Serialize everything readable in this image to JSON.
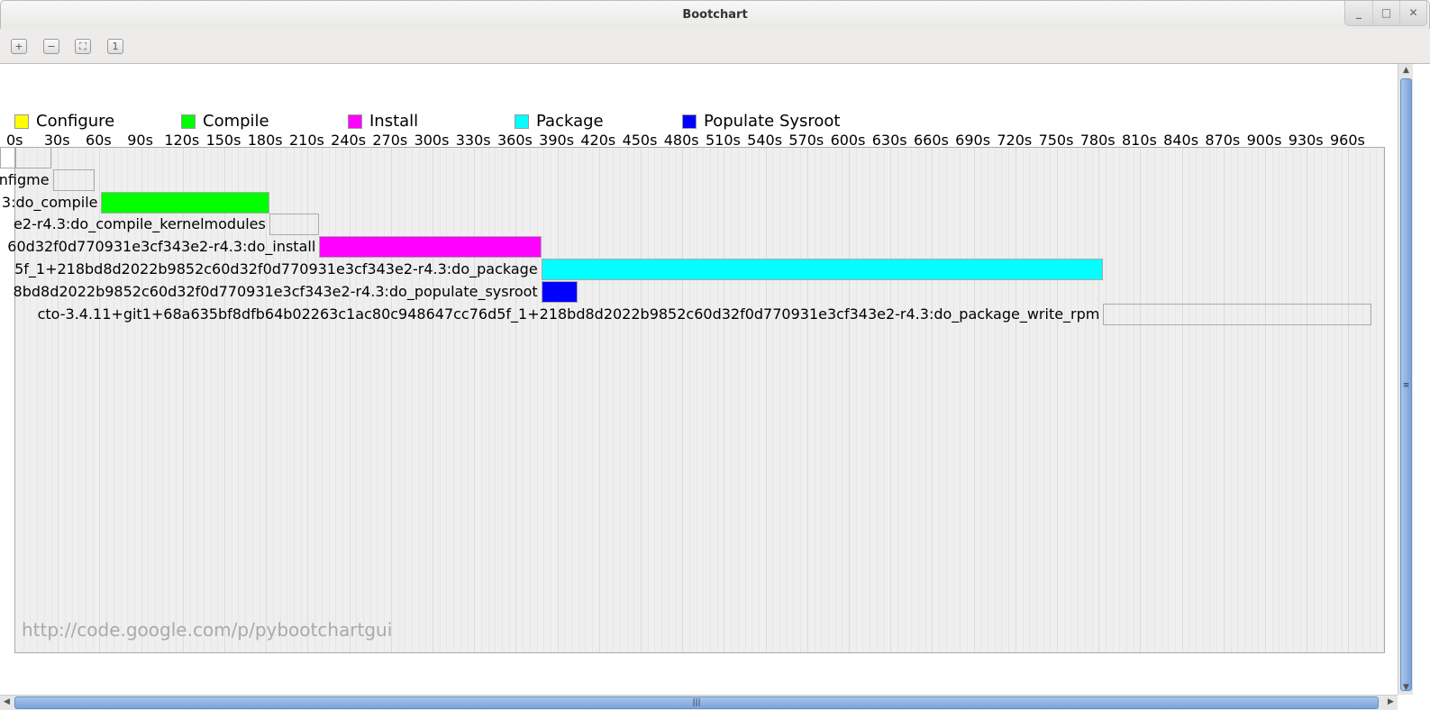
{
  "window": {
    "title": "Bootchart",
    "controls": [
      "_",
      "□",
      "✕"
    ]
  },
  "toolbar": {
    "buttons": [
      {
        "name": "zoom-in",
        "glyph": "+"
      },
      {
        "name": "zoom-out",
        "glyph": "−"
      },
      {
        "name": "zoom-fit",
        "glyph": "⛶"
      },
      {
        "name": "zoom-100",
        "glyph": "1"
      }
    ]
  },
  "chart_data": {
    "type": "gantt",
    "legend": [
      {
        "name": "Configure",
        "color": "#ffff00"
      },
      {
        "name": "Compile",
        "color": "#00ff00"
      },
      {
        "name": "Install",
        "color": "#ff00ff"
      },
      {
        "name": "Package",
        "color": "#00ffff"
      },
      {
        "name": "Populate Sysroot",
        "color": "#0000ff"
      }
    ],
    "x_unit": "s",
    "xlim": [
      0,
      987
    ],
    "x_ticks": [
      "0s",
      "30s",
      "60s",
      "90s",
      "120s",
      "150s",
      "180s",
      "210s",
      "240s",
      "270s",
      "300s",
      "330s",
      "360s",
      "390s",
      "420s",
      "450s",
      "480s",
      "510s",
      "540s",
      "570s",
      "600s",
      "630s",
      "660s",
      "690s",
      "720s",
      "750s",
      "780s",
      "810s",
      "840s",
      "870s",
      "900s",
      "930s",
      "960s"
    ],
    "tasks": [
      {
        "label": "",
        "start": 0,
        "end": 26,
        "color": "none"
      },
      {
        "label": "nfigme",
        "start": 27,
        "end": 57,
        "color": "none"
      },
      {
        "label": "3:do_compile",
        "start": 62,
        "end": 183,
        "color": "#00ff00"
      },
      {
        "label": "e2-r4.3:do_compile_kernelmodules",
        "start": 183,
        "end": 219,
        "color": "none"
      },
      {
        "label": "60d32f0d770931e3cf343e2-r4.3:do_install",
        "start": 219,
        "end": 379,
        "color": "#ff00ff"
      },
      {
        "label": "5f_1+218bd8d2022b9852c60d32f0d770931e3cf343e2-r4.3:do_package",
        "start": 379,
        "end": 784,
        "color": "#00ffff"
      },
      {
        "label": "8bd8d2022b9852c60d32f0d770931e3cf343e2-r4.3:do_populate_sysroot",
        "start": 379,
        "end": 405,
        "color": "#0000ff"
      },
      {
        "label": "cto-3.4.11+git1+68a635bf8dfb64b02263c1ac80c948647cc76d5f_1+218bd8d2022b9852c60d32f0d770931e3cf343e2-r4.3:do_package_write_rpm",
        "start": 784,
        "end": 977,
        "color": "none"
      }
    ]
  },
  "watermark": "http://code.google.com/p/pybootchartgui"
}
